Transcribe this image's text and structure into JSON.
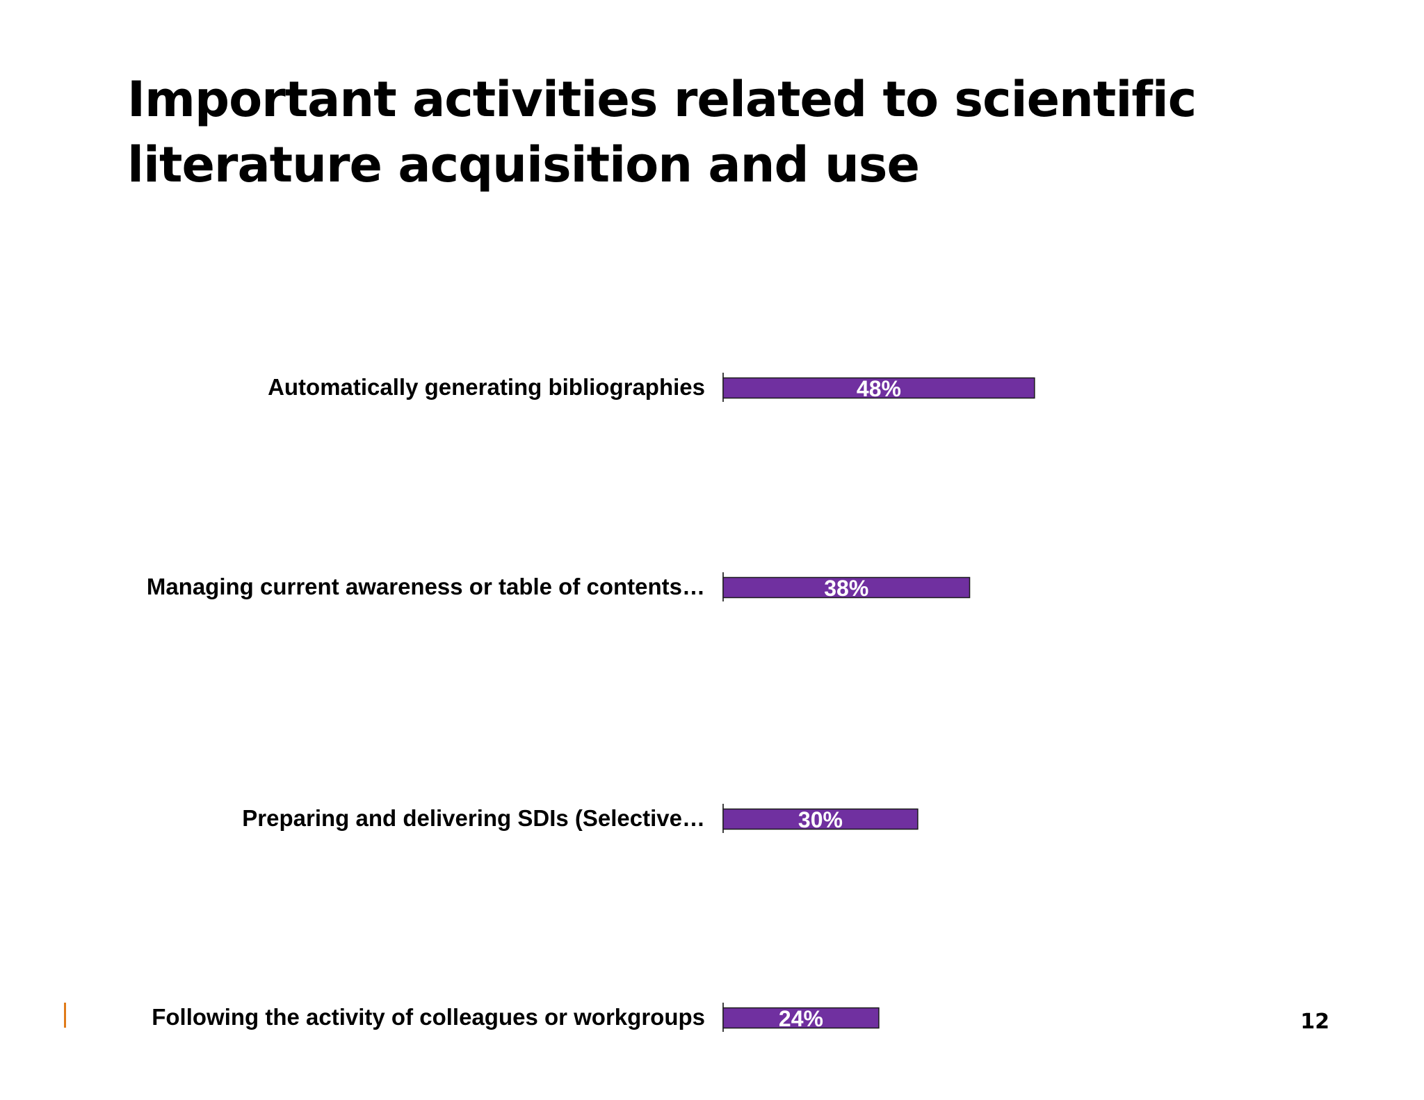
{
  "slide": {
    "title_line1": "Important activities related to scientific",
    "title_line2": "literature acquisition and use",
    "page_number": "12",
    "accent_color": "#e07b1a"
  },
  "chart_data": {
    "type": "bar",
    "orientation": "horizontal",
    "categories": [
      "Automatically generating bibliographies",
      "Managing current awareness or table of contents…",
      "Preparing and delivering SDIs (Selective…",
      "Following the activity of colleagues or workgroups"
    ],
    "values": [
      48,
      38,
      30,
      24
    ],
    "value_labels": [
      "48%",
      "38%",
      "30%",
      "24%"
    ],
    "unit": "%",
    "bar_color": "#7030a0",
    "label_color": "#ffffff",
    "grid": false,
    "legend": "none",
    "title": "",
    "xlabel": "",
    "ylabel": ""
  }
}
